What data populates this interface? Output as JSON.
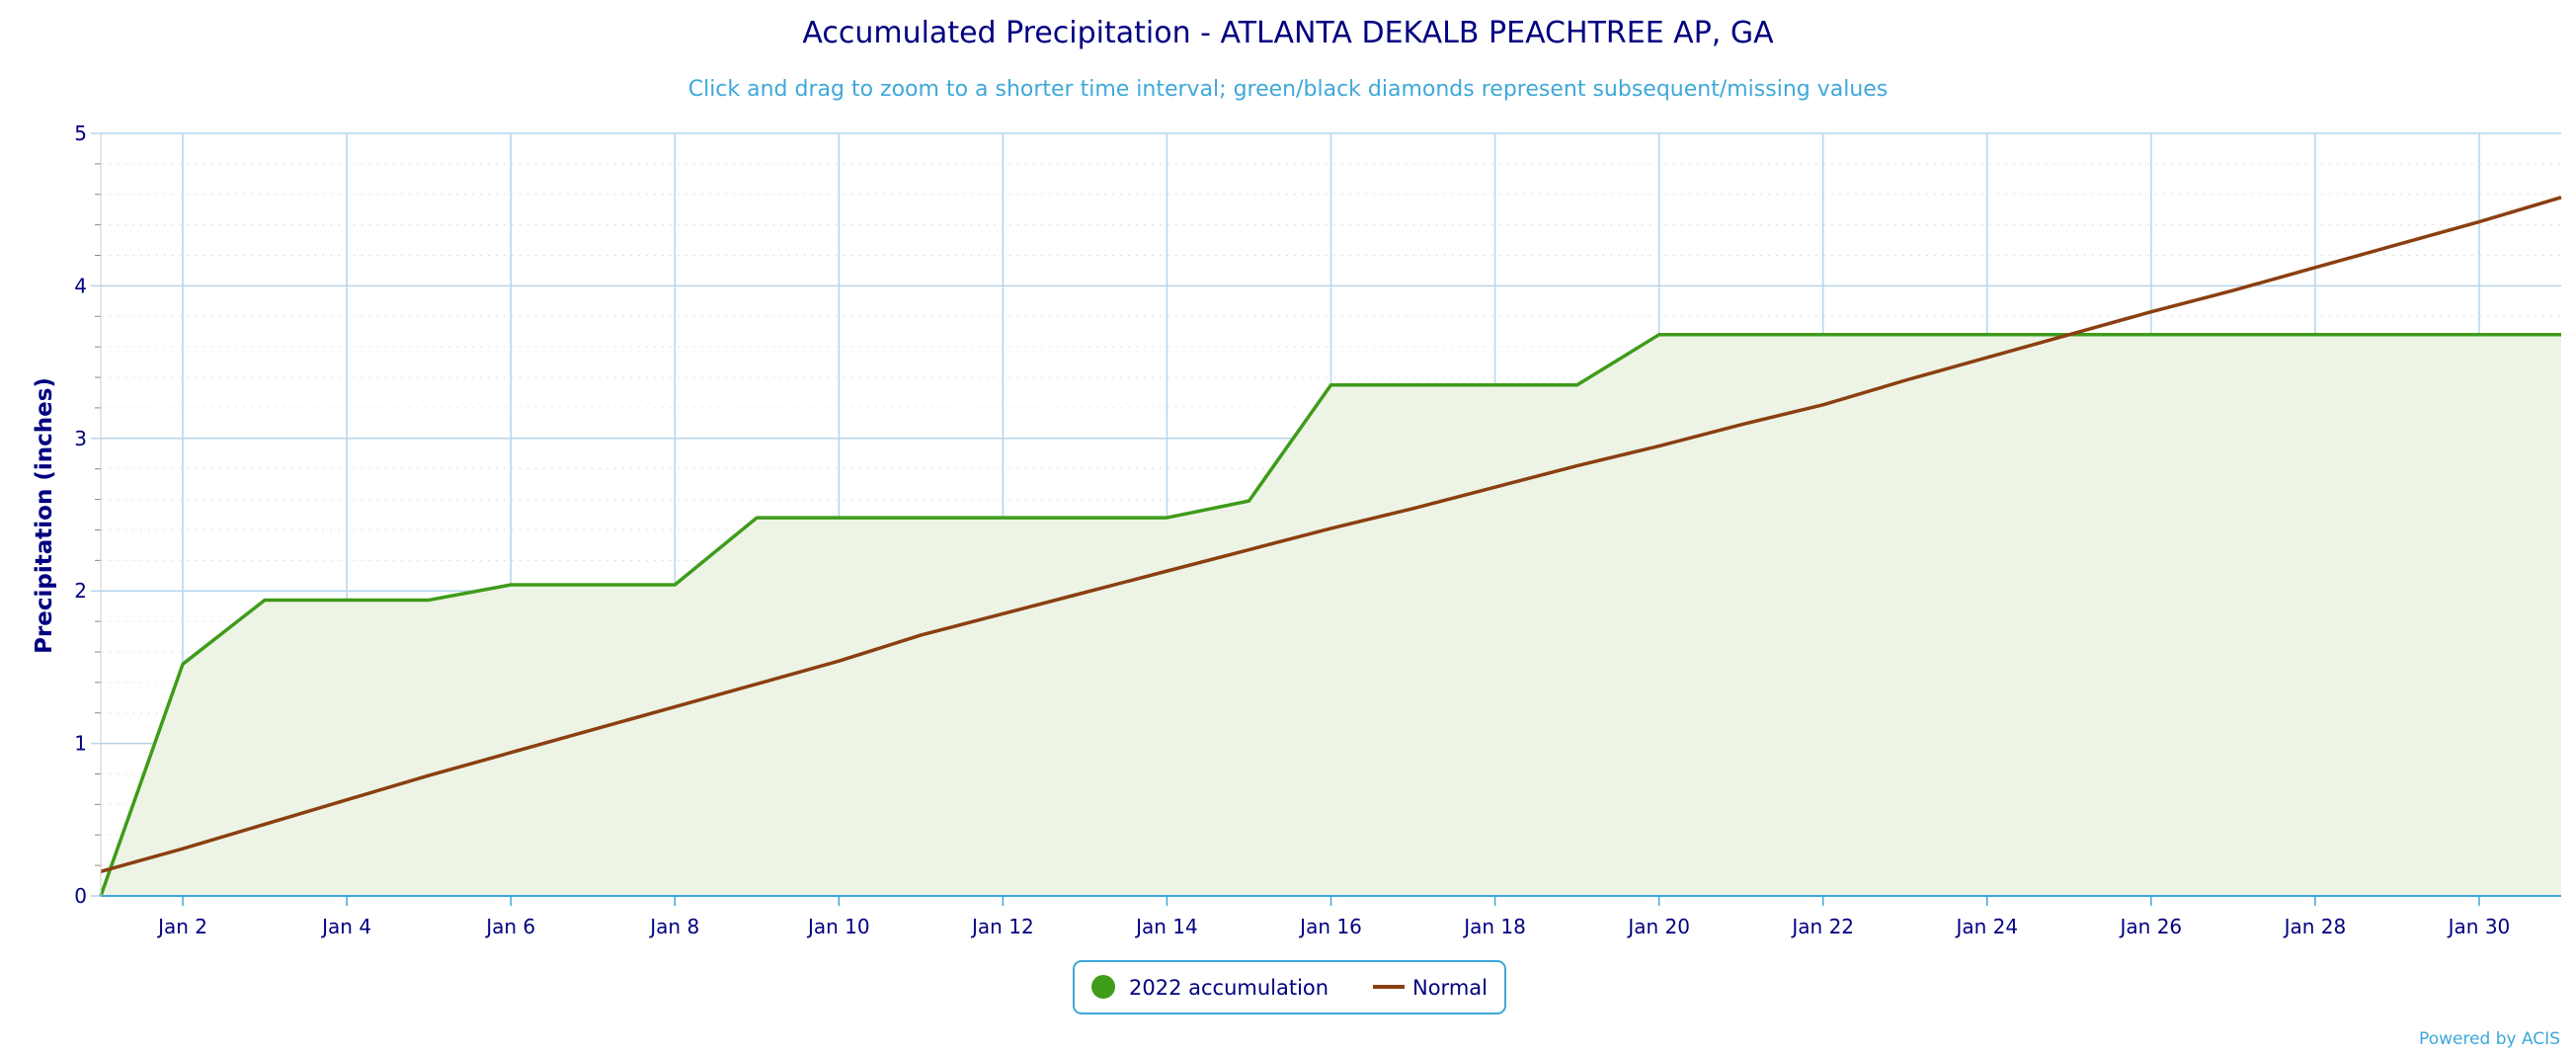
{
  "chart_data": {
    "type": "line",
    "title": "Accumulated Precipitation - ATLANTA DEKALB PEACHTREE AP, GA",
    "subtitle": "Click and drag to zoom to a shorter time interval; green/black diamonds represent subsequent/missing values",
    "xlabel": "",
    "ylabel": "Precipitation (inches)",
    "ylim": [
      0,
      5
    ],
    "xlim": [
      1,
      31
    ],
    "y_ticks": [
      0,
      1,
      2,
      3,
      4,
      5
    ],
    "x_ticks": [
      {
        "day": 2,
        "label": "Jan 2"
      },
      {
        "day": 4,
        "label": "Jan 4"
      },
      {
        "day": 6,
        "label": "Jan 6"
      },
      {
        "day": 8,
        "label": "Jan 8"
      },
      {
        "day": 10,
        "label": "Jan 10"
      },
      {
        "day": 12,
        "label": "Jan 12"
      },
      {
        "day": 14,
        "label": "Jan 14"
      },
      {
        "day": 16,
        "label": "Jan 16"
      },
      {
        "day": 18,
        "label": "Jan 18"
      },
      {
        "day": 20,
        "label": "Jan 20"
      },
      {
        "day": 22,
        "label": "Jan 22"
      },
      {
        "day": 24,
        "label": "Jan 24"
      },
      {
        "day": 26,
        "label": "Jan 26"
      },
      {
        "day": 28,
        "label": "Jan 28"
      },
      {
        "day": 30,
        "label": "Jan 30"
      }
    ],
    "grid": true,
    "legend_position": "bottom-center",
    "series": [
      {
        "name": "2022 accumulation",
        "color": "#3f9b1a",
        "fill": "#edf4e6",
        "style": "area-line",
        "x": [
          1,
          2,
          3,
          4,
          5,
          6,
          7,
          8,
          9,
          10,
          11,
          12,
          13,
          14,
          15,
          16,
          17,
          18,
          19,
          20,
          21,
          22,
          23,
          24,
          25,
          26,
          27,
          28,
          29,
          30,
          31
        ],
        "values": [
          0.0,
          1.52,
          1.94,
          1.94,
          1.94,
          2.04,
          2.04,
          2.04,
          2.48,
          2.48,
          2.48,
          2.48,
          2.48,
          2.48,
          2.59,
          3.35,
          3.35,
          3.35,
          3.35,
          3.68,
          3.68,
          3.68,
          3.68,
          3.68,
          3.68,
          3.68,
          3.68,
          3.68,
          3.68,
          3.68,
          3.68
        ]
      },
      {
        "name": "Normal",
        "color": "#8b3f10",
        "style": "line",
        "x": [
          1,
          2,
          3,
          4,
          5,
          6,
          7,
          8,
          9,
          10,
          11,
          12,
          13,
          14,
          15,
          16,
          17,
          18,
          19,
          20,
          21,
          22,
          23,
          24,
          25,
          26,
          27,
          28,
          29,
          30,
          31
        ],
        "values": [
          0.16,
          0.31,
          0.47,
          0.63,
          0.79,
          0.94,
          1.09,
          1.24,
          1.39,
          1.54,
          1.71,
          1.85,
          1.99,
          2.13,
          2.27,
          2.41,
          2.54,
          2.68,
          2.82,
          2.95,
          3.09,
          3.22,
          3.38,
          3.53,
          3.68,
          3.83,
          3.97,
          4.12,
          4.27,
          4.42,
          4.58
        ]
      }
    ],
    "credit": "Powered by ACIS"
  },
  "colors": {
    "title": "#000080",
    "subtitle": "#3ea8d9",
    "grid": "#b5d5ec",
    "minor_grid": "#e3e3e3",
    "axis": "#3ea8d9",
    "legend_border": "#3ea8d9"
  }
}
